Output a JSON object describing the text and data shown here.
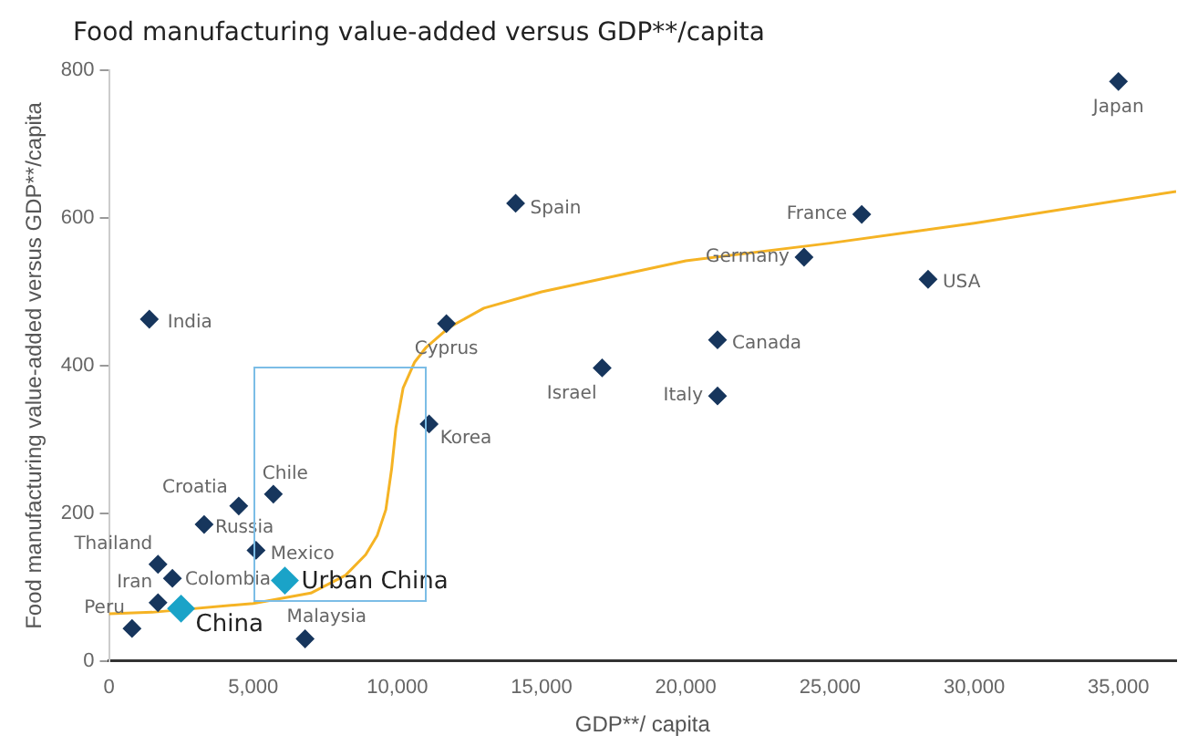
{
  "chart_data": {
    "type": "scatter",
    "title": "Food manufacturing value-added versus GDP**/capita",
    "xlabel": "GDP**/ capita",
    "ylabel": "Food manufacturing value-added versus GDP**/capita",
    "xlim": [
      0,
      37000
    ],
    "ylim": [
      0,
      800
    ],
    "xticks": [
      0,
      {
        "value": 5000,
        "label": "5,000"
      },
      {
        "value": 10000,
        "label": "10,000"
      },
      {
        "value": 15000,
        "label": "15,000"
      },
      {
        "value": 20000,
        "label": "20,000"
      },
      {
        "value": 25000,
        "label": "25,000"
      },
      {
        "value": 30000,
        "label": "30,000"
      },
      {
        "value": 35000,
        "label": "35,000"
      }
    ],
    "yticks": [
      0,
      200,
      400,
      600,
      800
    ],
    "grid": false,
    "legend": false,
    "marker": "diamond",
    "series": [
      {
        "color": "#17365d",
        "x": [
          35000,
          14100,
          26100,
          24100,
          28400,
          21100,
          17100,
          21100,
          11700,
          11100,
          1400,
          5700,
          4500,
          3300,
          5100,
          1700,
          2200,
          1700,
          800,
          6800
        ],
        "values": [
          785,
          620,
          605,
          547,
          517,
          435,
          397,
          359,
          457,
          321,
          463,
          226,
          210,
          185,
          150,
          131,
          112,
          79,
          44,
          30
        ]
      },
      {
        "color": "#1aa3c8",
        "x": [
          2500,
          6100
        ],
        "values": [
          71,
          109
        ]
      },
      {
        "type": "line",
        "color": "#f5b324",
        "marker": "none",
        "x": [
          0,
          1500,
          5000,
          7000,
          8200,
          8900,
          9300,
          9600,
          9800,
          9950,
          10200,
          10600,
          11000,
          11800,
          13000,
          15000,
          20000,
          25000,
          30000,
          37000
        ],
        "values": [
          64,
          66,
          78,
          92,
          116,
          144,
          170,
          205,
          260,
          316,
          370,
          405,
          425,
          452,
          478,
          500,
          542,
          566,
          593,
          636
        ]
      }
    ],
    "annotations": [
      {
        "text": "Japan",
        "x": 35000,
        "y": 785
      },
      {
        "text": "Spain",
        "x": 14100,
        "y": 620
      },
      {
        "text": "France",
        "x": 26100,
        "y": 605
      },
      {
        "text": "Germany",
        "x": 24100,
        "y": 547
      },
      {
        "text": "USA",
        "x": 28400,
        "y": 517
      },
      {
        "text": "Canada",
        "x": 21100,
        "y": 435
      },
      {
        "text": "Israel",
        "x": 17100,
        "y": 397
      },
      {
        "text": "Italy",
        "x": 21100,
        "y": 359
      },
      {
        "text": "Cyprus",
        "x": 11700,
        "y": 457
      },
      {
        "text": "Korea",
        "x": 11100,
        "y": 321
      },
      {
        "text": "India",
        "x": 1400,
        "y": 463
      },
      {
        "text": "Chile",
        "x": 5700,
        "y": 226
      },
      {
        "text": "Croatia",
        "x": 4500,
        "y": 210
      },
      {
        "text": "Russia",
        "x": 3300,
        "y": 185
      },
      {
        "text": "Mexico",
        "x": 5100,
        "y": 150
      },
      {
        "text": "Thailand",
        "x": 1700,
        "y": 131
      },
      {
        "text": "Colombia",
        "x": 2200,
        "y": 112
      },
      {
        "text": "Iran",
        "x": 1700,
        "y": 79
      },
      {
        "text": "Peru",
        "x": 800,
        "y": 44
      },
      {
        "text": "Malaysia",
        "x": 6800,
        "y": 30
      },
      {
        "text": "China",
        "x": 2500,
        "y": 71
      },
      {
        "text": "Urban China",
        "x": 6100,
        "y": 109
      }
    ]
  }
}
